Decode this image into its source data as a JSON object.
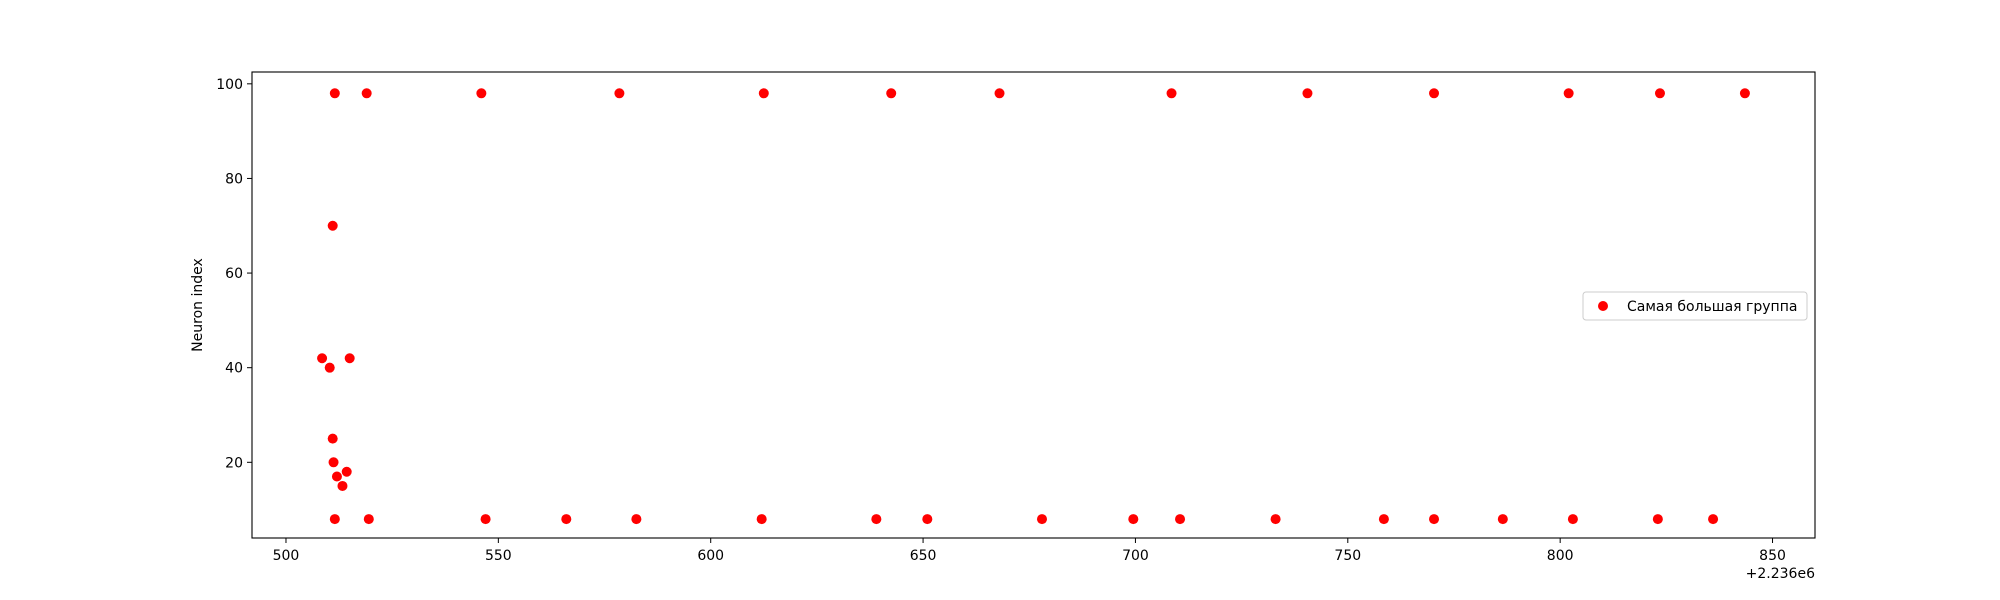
{
  "chart_data": {
    "type": "scatter",
    "title": "",
    "xlabel": "",
    "ylabel": "Neuron index",
    "x_offset_label": "+2.236e6",
    "xlim": [
      492,
      860
    ],
    "ylim": [
      4,
      102.5
    ],
    "x_ticks": [
      500,
      550,
      600,
      650,
      700,
      750,
      800,
      850
    ],
    "y_ticks": [
      20,
      40,
      60,
      80,
      100
    ],
    "grid": false,
    "legend_position": "center-right",
    "series": [
      {
        "name": "Самая большая группа",
        "color": "#ff0000",
        "points": [
          {
            "x": 511.5,
            "y": 98
          },
          {
            "x": 519,
            "y": 98
          },
          {
            "x": 546,
            "y": 98
          },
          {
            "x": 578.5,
            "y": 98
          },
          {
            "x": 612.5,
            "y": 98
          },
          {
            "x": 642.5,
            "y": 98
          },
          {
            "x": 668,
            "y": 98
          },
          {
            "x": 708.5,
            "y": 98
          },
          {
            "x": 740.5,
            "y": 98
          },
          {
            "x": 770.3,
            "y": 98
          },
          {
            "x": 802,
            "y": 98
          },
          {
            "x": 823.5,
            "y": 98
          },
          {
            "x": 843.5,
            "y": 98
          },
          {
            "x": 511,
            "y": 70
          },
          {
            "x": 508.5,
            "y": 42
          },
          {
            "x": 515,
            "y": 42
          },
          {
            "x": 510.3,
            "y": 40
          },
          {
            "x": 511,
            "y": 25
          },
          {
            "x": 511.2,
            "y": 20
          },
          {
            "x": 514.3,
            "y": 18
          },
          {
            "x": 512,
            "y": 17
          },
          {
            "x": 513.3,
            "y": 15
          },
          {
            "x": 511.5,
            "y": 8
          },
          {
            "x": 519.5,
            "y": 8
          },
          {
            "x": 547,
            "y": 8
          },
          {
            "x": 566,
            "y": 8
          },
          {
            "x": 582.5,
            "y": 8
          },
          {
            "x": 612,
            "y": 8
          },
          {
            "x": 639,
            "y": 8
          },
          {
            "x": 651,
            "y": 8
          },
          {
            "x": 678,
            "y": 8
          },
          {
            "x": 699.5,
            "y": 8
          },
          {
            "x": 710.5,
            "y": 8
          },
          {
            "x": 733,
            "y": 8
          },
          {
            "x": 758.5,
            "y": 8
          },
          {
            "x": 770.3,
            "y": 8
          },
          {
            "x": 786.5,
            "y": 8
          },
          {
            "x": 803,
            "y": 8
          },
          {
            "x": 823,
            "y": 8
          },
          {
            "x": 836,
            "y": 8
          }
        ]
      }
    ]
  }
}
